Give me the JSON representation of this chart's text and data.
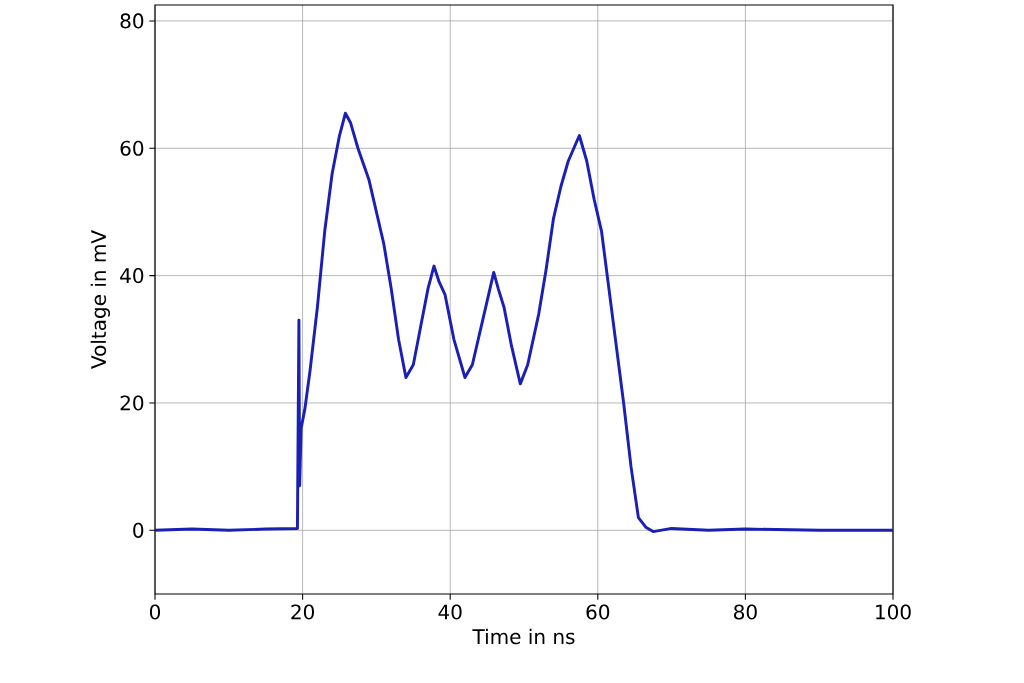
{
  "chart_data": {
    "type": "line",
    "xlabel": "Time in ns",
    "ylabel": "Voltage in mV",
    "xlim": [
      0,
      100
    ],
    "ylim": [
      -10,
      82.5
    ],
    "xticks": [
      0,
      20,
      40,
      60,
      80,
      100
    ],
    "yticks": [
      0,
      20,
      40,
      60,
      80
    ],
    "grid": true,
    "series": [
      {
        "color": "#1a1fb5",
        "x": [
          0,
          5,
          10,
          15,
          19.3,
          19.5,
          19.6,
          19.8,
          20.3,
          21,
          22,
          23,
          24,
          25,
          25.8,
          26.5,
          27.5,
          29,
          31,
          32,
          33,
          34,
          35,
          36,
          37,
          37.8,
          38.5,
          39.3,
          40.5,
          41.5,
          42,
          43,
          44,
          45,
          45.9,
          46.5,
          47.3,
          48.3,
          49.5,
          50.5,
          52,
          53,
          54,
          55,
          56,
          57.5,
          58.5,
          59.5,
          60.5,
          61.5,
          62.5,
          63.5,
          64.5,
          65.5,
          66.5,
          67.5,
          70,
          75,
          80,
          90,
          100
        ],
        "values": [
          0,
          0.2,
          0,
          0.2,
          0.3,
          33,
          7,
          16,
          19,
          25,
          35,
          47,
          56,
          62,
          65.5,
          64,
          60,
          55,
          45,
          38,
          30,
          24,
          26,
          32,
          38,
          41.5,
          39,
          37,
          30,
          26,
          24,
          26,
          31,
          36,
          40.5,
          38,
          35,
          29,
          23,
          26,
          34,
          41,
          49,
          54,
          58,
          62,
          58,
          52,
          47,
          38,
          29,
          20,
          10,
          2,
          0.5,
          -0.2,
          0.3,
          0,
          0.2,
          0,
          0
        ]
      }
    ]
  }
}
